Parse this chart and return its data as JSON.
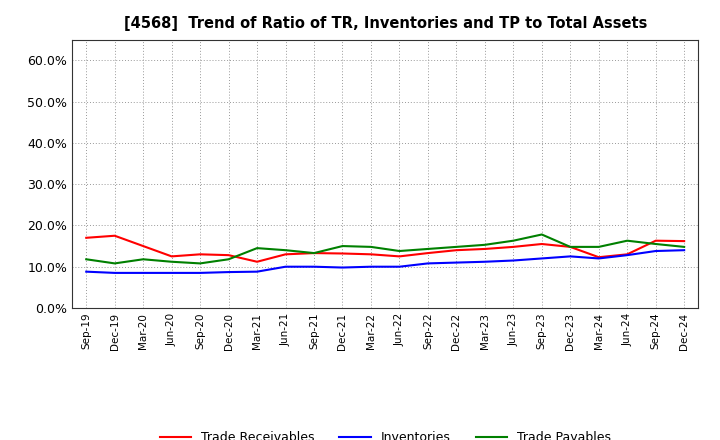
{
  "title": "[4568]  Trend of Ratio of TR, Inventories and TP to Total Assets",
  "x_labels": [
    "Sep-19",
    "Dec-19",
    "Mar-20",
    "Jun-20",
    "Sep-20",
    "Dec-20",
    "Mar-21",
    "Jun-21",
    "Sep-21",
    "Dec-21",
    "Mar-22",
    "Jun-22",
    "Sep-22",
    "Dec-22",
    "Mar-23",
    "Jun-23",
    "Sep-23",
    "Dec-23",
    "Mar-24",
    "Jun-24",
    "Sep-24",
    "Dec-24"
  ],
  "trade_receivables": [
    0.17,
    0.175,
    0.15,
    0.125,
    0.13,
    0.128,
    0.112,
    0.13,
    0.133,
    0.132,
    0.13,
    0.125,
    0.133,
    0.14,
    0.143,
    0.148,
    0.155,
    0.148,
    0.123,
    0.13,
    0.163,
    0.162
  ],
  "inventories": [
    0.088,
    0.085,
    0.085,
    0.085,
    0.085,
    0.087,
    0.088,
    0.1,
    0.1,
    0.098,
    0.1,
    0.1,
    0.108,
    0.11,
    0.112,
    0.115,
    0.12,
    0.125,
    0.12,
    0.128,
    0.138,
    0.14
  ],
  "trade_payables": [
    0.118,
    0.108,
    0.118,
    0.112,
    0.108,
    0.118,
    0.145,
    0.14,
    0.133,
    0.15,
    0.148,
    0.138,
    0.143,
    0.148,
    0.153,
    0.163,
    0.178,
    0.148,
    0.148,
    0.163,
    0.155,
    0.148
  ],
  "ylim": [
    0.0,
    0.65
  ],
  "yticks": [
    0.0,
    0.1,
    0.2,
    0.3,
    0.4,
    0.5,
    0.6
  ],
  "line_colors": {
    "trade_receivables": "#FF0000",
    "inventories": "#0000FF",
    "trade_payables": "#008000"
  },
  "legend_labels": [
    "Trade Receivables",
    "Inventories",
    "Trade Payables"
  ],
  "background_color": "#FFFFFF",
  "grid_color": "#999999"
}
